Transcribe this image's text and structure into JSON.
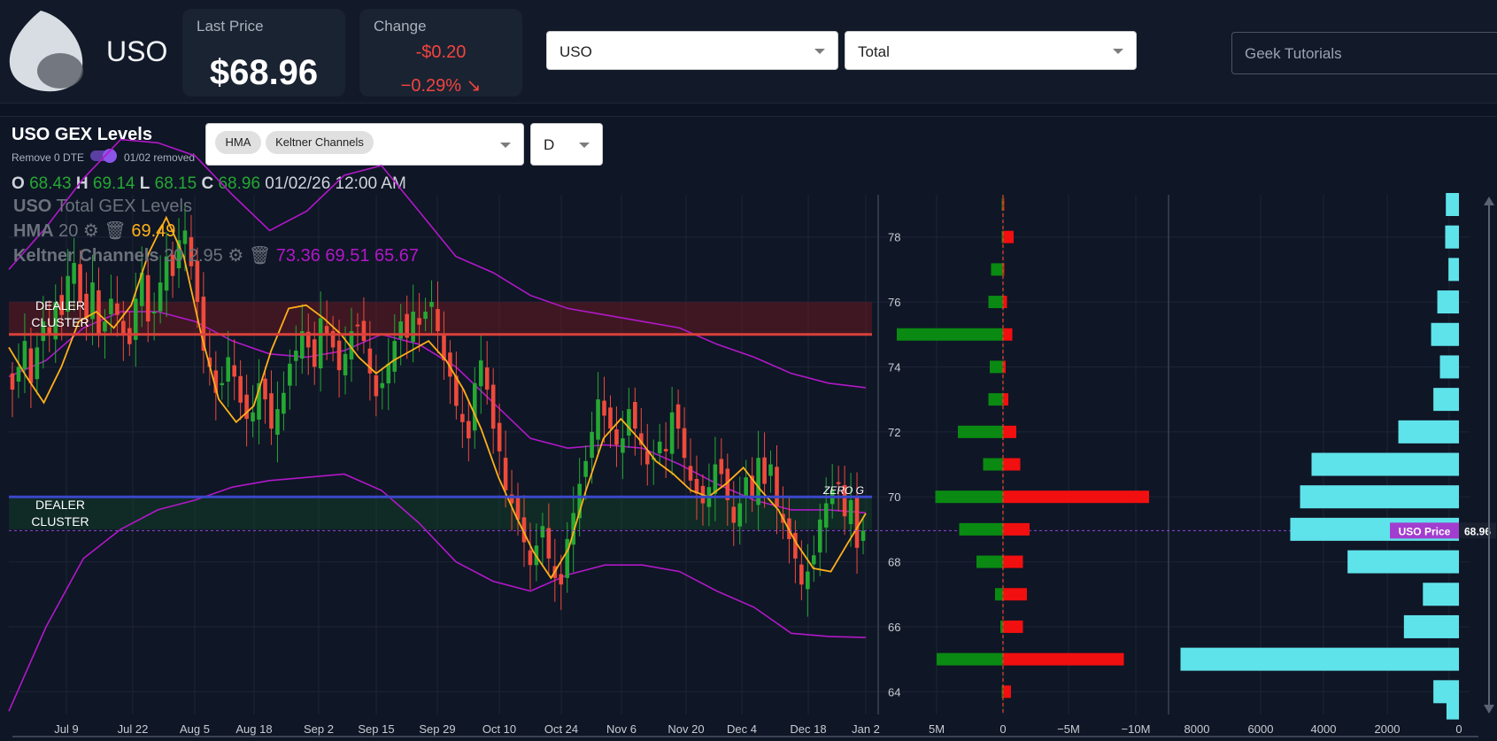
{
  "header": {
    "ticker": "USO",
    "last_price_label": "Last Price",
    "last_price": "$68.96",
    "change_label": "Change",
    "change_value": "-$0.20",
    "change_percent": "−0.29%",
    "symbol_select": "USO",
    "gex_select": "Total",
    "brand_input": "Geek Tutorials"
  },
  "panel": {
    "title": "USO GEX Levels",
    "toggle_label": "Remove 0 DTE",
    "removed_label": "01/02 removed",
    "indicator_chips": [
      "HMA",
      "Keltner Channels"
    ],
    "timeframe": "D",
    "ohlc": {
      "o_label": "O",
      "o": "68.43",
      "h_label": "H",
      "h": "69.14",
      "l_label": "L",
      "l": "68.15",
      "c_label": "C",
      "c": "68.96",
      "datetime": "01/02/26 12:00 AM"
    },
    "legend": {
      "series_ticker": "USO",
      "series_name": "Total GEX Levels",
      "hma_label": "HMA",
      "hma_param": "20",
      "hma_value": "69.49",
      "keltner_label": "Keltner Channels",
      "keltner_params": "20 2.95",
      "keltner_values": "73.36 69.51 65.67"
    }
  },
  "chart_data": [
    {
      "type": "candlestick",
      "title": "USO Total GEX Levels",
      "x_ticks": [
        "Jul 9",
        "Jul 22",
        "Aug 5",
        "Aug 18",
        "Sep 2",
        "Sep 15",
        "Sep 29",
        "Oct 10",
        "Oct 24",
        "Nov 6",
        "Nov 20",
        "Dec 4",
        "Dec 18",
        "Jan 2"
      ],
      "ylim": [
        63.3,
        79.3
      ],
      "closes": [
        73.3,
        74.0,
        74.8,
        73.5,
        74.6,
        75.4,
        75.0,
        76.0,
        75.6,
        76.8,
        77.2,
        76.0,
        75.5,
        76.6,
        75.0,
        75.4,
        76.1,
        75.6,
        75.0,
        74.7,
        76.1,
        76.9,
        75.4,
        75.7,
        76.6,
        77.4,
        76.8,
        77.9,
        78.2,
        77.1,
        76.0,
        74.5,
        74.0,
        73.2,
        73.5,
        74.3,
        73.7,
        72.9,
        72.4,
        72.6,
        73.5,
        73.0,
        72.1,
        72.7,
        73.2,
        74.1,
        74.5,
        75.1,
        74.6,
        74.0,
        75.5,
        75.0,
        74.6,
        73.9,
        74.4,
        75.1,
        75.3,
        74.8,
        73.8,
        73.1,
        73.5,
        74.1,
        74.8,
        75.4,
        74.9,
        75.7,
        75.3,
        75.7,
        76.0,
        75.1,
        74.2,
        73.7,
        72.8,
        72.3,
        71.8,
        73.5,
        74.2,
        73.3,
        72.1,
        71.4,
        70.2,
        69.8,
        69.3,
        68.6,
        67.9,
        68.5,
        69.1,
        68.1,
        67.5,
        67.3,
        68.7,
        69.5,
        70.4,
        71.1,
        72.0,
        73.0,
        72.5,
        72.1,
        71.6,
        71.8,
        72.7,
        72.1,
        71.6,
        71.0,
        71.2,
        71.7,
        71.4,
        72.6,
        72.1,
        71.2,
        70.5,
        70.1,
        69.8,
        70.3,
        71.0,
        70.7,
        69.9,
        69.2,
        69.8,
        70.6,
        70.0,
        71.2,
        70.4,
        71.0,
        69.7,
        69.2,
        68.7,
        68.1,
        67.3,
        67.7,
        68.2,
        69.3,
        69.8,
        70.2,
        70.4,
        69.4,
        69.9,
        68.43,
        68.96
      ],
      "hma20": [
        74.6,
        73.7,
        72.9,
        74.0,
        75.4,
        75.7,
        75.2,
        75.9,
        77.5,
        78.6,
        77.4,
        75.0,
        73.0,
        72.3,
        72.8,
        74.5,
        75.8,
        75.9,
        75.5,
        75.0,
        74.3,
        73.8,
        74.2,
        74.5,
        74.8,
        74.2,
        73.3,
        72.1,
        70.6,
        69.4,
        68.3,
        67.5,
        68.4,
        70.2,
        71.8,
        72.4,
        71.8,
        71.1,
        70.7,
        70.2,
        70.0,
        70.4,
        70.9,
        70.2,
        69.6,
        68.6,
        67.8,
        67.7,
        68.6,
        69.49
      ],
      "keltner_upper": [
        77.0,
        78.3,
        79.8,
        81.0,
        80.9,
        80.5,
        79.3,
        78.2,
        78.8,
        79.9,
        80.2,
        78.8,
        77.4,
        76.9,
        76.2,
        75.8,
        75.6,
        75.4,
        75.2,
        74.7,
        74.3,
        73.8,
        73.5,
        73.36
      ],
      "keltner_middle": [
        73.7,
        74.2,
        75.2,
        75.7,
        75.7,
        75.4,
        74.8,
        74.4,
        74.3,
        74.5,
        75.0,
        74.7,
        74.0,
        72.9,
        71.8,
        71.5,
        71.6,
        71.5,
        71.0,
        70.4,
        69.9,
        69.6,
        69.6,
        69.51
      ],
      "keltner_lower": [
        63.4,
        66.0,
        68.1,
        69.0,
        69.6,
        69.9,
        70.3,
        70.5,
        70.6,
        70.7,
        70.2,
        69.2,
        68.0,
        67.4,
        67.1,
        67.6,
        67.9,
        67.9,
        67.7,
        67.1,
        66.6,
        65.8,
        65.7,
        65.67
      ],
      "levels": [
        {
          "label": "DEALER CLUSTER",
          "price": 75.0,
          "color": "#d9413a",
          "zone": [
            75.0,
            76.0
          ]
        },
        {
          "label": "DEALER CLUSTER",
          "price": 70.0,
          "color": "#3b48c9",
          "zone": [
            69.0,
            70.0
          ]
        }
      ],
      "annotations": [
        "ZERO G"
      ],
      "current_price": 68.96
    },
    {
      "type": "bar",
      "orientation": "horizontal",
      "title": "",
      "y_ticks": [
        64,
        66,
        68,
        70,
        72,
        74,
        76,
        78
      ],
      "x_ticks": [
        "5M",
        "0",
        "−5M",
        "−10M"
      ],
      "series": [
        {
          "color": "#0a8a12",
          "strikes": [
            79,
            78,
            77,
            76,
            75,
            74,
            73,
            72,
            71,
            70,
            69,
            68,
            67,
            66,
            65,
            64
          ],
          "values": [
            0.1,
            0.1,
            0.9,
            1.1,
            8.0,
            1.0,
            1.1,
            3.4,
            1.5,
            5.1,
            3.3,
            2.0,
            0.6,
            0.2,
            5.0,
            0.1
          ]
        },
        {
          "color": "#f20f0f",
          "strikes": [
            79,
            78,
            77,
            76,
            75,
            74,
            73,
            72,
            71,
            70,
            69,
            68,
            67,
            66,
            65,
            64
          ],
          "values": [
            -0.1,
            -0.8,
            -0.1,
            -0.3,
            -0.7,
            -0.2,
            -0.4,
            -1.0,
            -1.3,
            -11.0,
            -2.0,
            -1.5,
            -1.8,
            -1.5,
            -9.1,
            -0.6
          ]
        }
      ]
    },
    {
      "type": "bar",
      "orientation": "horizontal",
      "title": "",
      "x_ticks": [
        "8000",
        "6000",
        "4000",
        "2000",
        "0"
      ],
      "series": [
        {
          "color": "#5fe3ea",
          "strikes": [
            79,
            78,
            77,
            76,
            75,
            74,
            73,
            72,
            71,
            70,
            69,
            68,
            67,
            66,
            65,
            64,
            63.5
          ],
          "values": [
            400,
            420,
            320,
            660,
            850,
            580,
            780,
            1850,
            4500,
            4850,
            5150,
            3400,
            1100,
            1680,
            8500,
            780,
            380
          ]
        }
      ],
      "price_label": "USO Price",
      "price_value": "68.96"
    }
  ],
  "colors": {
    "up": "#25a833",
    "down": "#ef4a3b",
    "hma": "#ffb019",
    "keltner": "#b118c8",
    "accent": "#a23ecf"
  }
}
